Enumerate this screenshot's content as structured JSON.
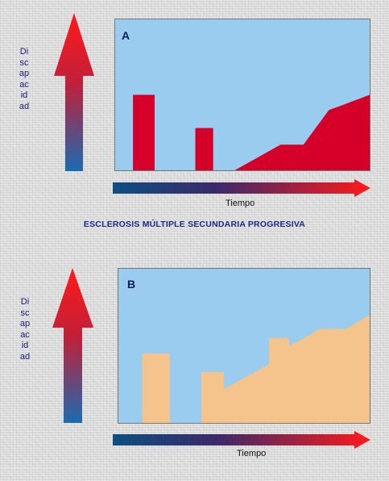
{
  "colors": {
    "plot_background": "#99ccee",
    "bar_red": "#d4002a",
    "bar_peach": "#f4c48c",
    "gradient_blue": "#1a6bb0",
    "gradient_red": "#ff1a1a",
    "caption_text": "#1a2a8a"
  },
  "panels": [
    {
      "letter": "A",
      "y_label": "Discapacidad",
      "x_label": "Tiempo",
      "chart_data": {
        "type": "area",
        "description_shape": "two isolated relapse bars then a stepped progressive ramp",
        "bars": [
          {
            "x_start": 0.07,
            "x_end": 0.155,
            "height": 0.5
          },
          {
            "x_start": 0.315,
            "x_end": 0.385,
            "height": 0.28
          }
        ],
        "progression": {
          "x": [
            0.47,
            0.65,
            0.74,
            0.84,
            0.89,
            1.0
          ],
          "y": [
            0.0,
            0.17,
            0.17,
            0.4,
            0.43,
            0.5
          ]
        },
        "fill": "#d4002a"
      }
    },
    {
      "letter": "B",
      "y_label": "Discapacidad",
      "x_label": "Tiempo",
      "chart_data": {
        "type": "area",
        "description_shape": "relapse bar then stepped progression with plateaus",
        "bars": [
          {
            "x_start": 0.095,
            "x_end": 0.205,
            "height": 0.45
          }
        ],
        "progression": {
          "x": [
            0.33,
            0.33,
            0.42,
            0.42,
            0.6,
            0.6,
            0.68,
            0.68,
            0.74,
            0.8,
            0.905,
            1.0
          ],
          "y": [
            0.0,
            0.33,
            0.33,
            0.22,
            0.38,
            0.55,
            0.55,
            0.5,
            0.55,
            0.61,
            0.61,
            0.7
          ]
        },
        "fill": "#f4c48c"
      }
    }
  ],
  "caption": "ESCLEROSIS MÚLTIPLE SECUNDARIA PROGRESIVA"
}
